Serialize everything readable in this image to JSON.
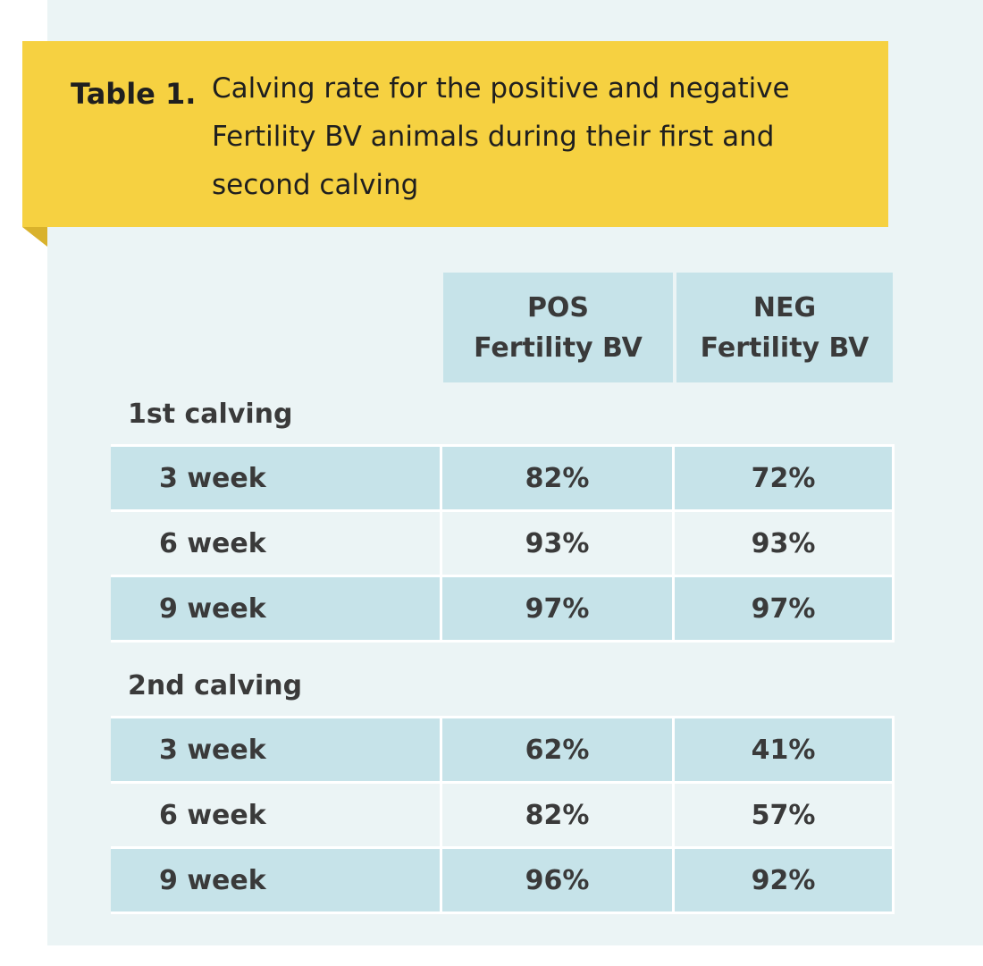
{
  "caption": {
    "label": "Table 1.",
    "lines": [
      "Calving rate for the positive and negative",
      "Fertility BV animals during their first and",
      "second calving"
    ]
  },
  "columns": [
    {
      "line1": "POS",
      "line2": "Fertility BV"
    },
    {
      "line1": "NEG",
      "line2": "Fertility BV"
    }
  ],
  "groups": [
    {
      "title": "1st calving",
      "rows": [
        {
          "label": "3 week",
          "pos": "82%",
          "neg": "72%"
        },
        {
          "label": "6 week",
          "pos": "93%",
          "neg": "93%"
        },
        {
          "label": "9 week",
          "pos": "97%",
          "neg": "97%"
        }
      ]
    },
    {
      "title": "2nd calving",
      "rows": [
        {
          "label": "3 week",
          "pos": "62%",
          "neg": "41%"
        },
        {
          "label": "6 week",
          "pos": "82%",
          "neg": "57%"
        },
        {
          "label": "9 week",
          "pos": "96%",
          "neg": "92%"
        }
      ]
    }
  ],
  "chart_data": {
    "type": "table",
    "title": "Calving rate for the positive and negative Fertility BV animals during their first and second calving",
    "columns": [
      "",
      "POS Fertility BV",
      "NEG Fertility BV"
    ],
    "rows": [
      [
        "1st calving",
        "",
        ""
      ],
      [
        "3 week",
        "82%",
        "72%"
      ],
      [
        "6 week",
        "93%",
        "93%"
      ],
      [
        "9 week",
        "97%",
        "97%"
      ],
      [
        "2nd calving",
        "",
        ""
      ],
      [
        "3 week",
        "62%",
        "41%"
      ],
      [
        "6 week",
        "82%",
        "57%"
      ],
      [
        "9 week",
        "96%",
        "92%"
      ]
    ],
    "series": [
      {
        "name": "POS Fertility BV",
        "values": [
          82,
          93,
          97,
          62,
          82,
          96
        ]
      },
      {
        "name": "NEG Fertility BV",
        "values": [
          72,
          93,
          97,
          41,
          57,
          92
        ]
      }
    ]
  }
}
